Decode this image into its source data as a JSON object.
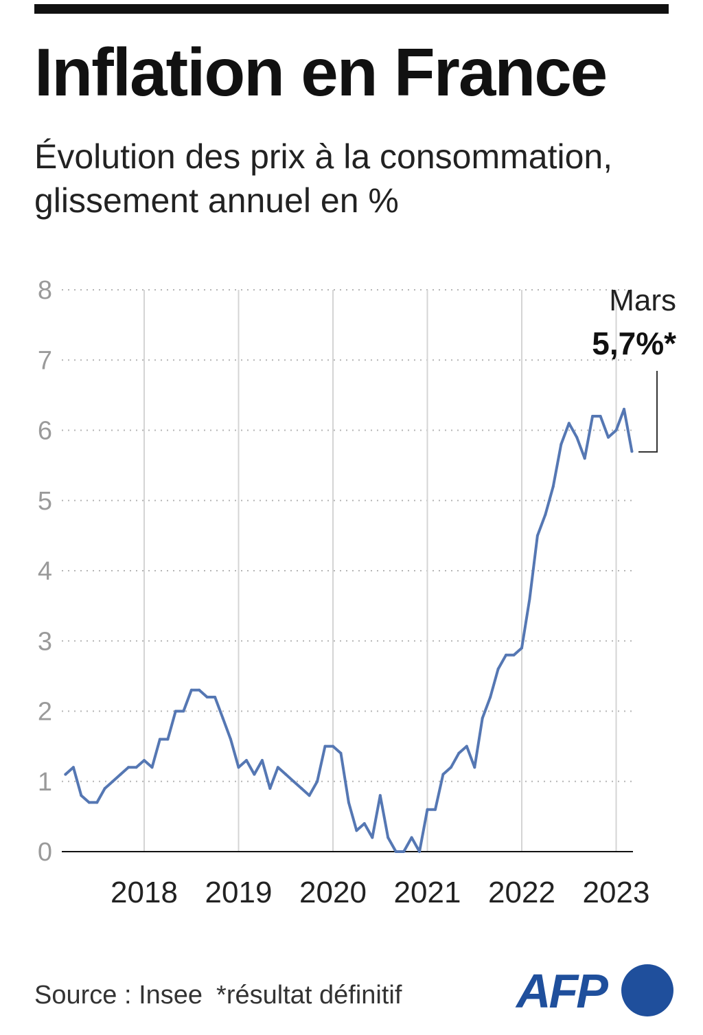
{
  "title": "Inflation en France",
  "subtitle": "Évolution des prix à la consommation, glissement annuel en %",
  "source": "Source : Insee",
  "footnote": "*résultat définitif",
  "logo_text": "AFP",
  "colors": {
    "line": "#5577b3",
    "brand": "#1f4f9c"
  },
  "annotation": {
    "month": "Mars",
    "value": "5,7%*"
  },
  "chart_data": {
    "type": "line",
    "title": "Inflation en France",
    "subtitle": "Évolution des prix à la consommation, glissement annuel en %",
    "xlabel": "",
    "ylabel": "",
    "ylim": [
      0,
      8
    ],
    "yticks": [
      "0",
      "1",
      "2",
      "3",
      "4",
      "5",
      "6",
      "7",
      "8"
    ],
    "xticks": [
      "2018",
      "2019",
      "2020",
      "2021",
      "2022",
      "2023"
    ],
    "grid": "horizontal dotted, vertical at years",
    "series": [
      {
        "x": [
          "2017-03",
          "2017-04",
          "2017-05",
          "2017-06",
          "2017-07",
          "2017-08",
          "2017-09",
          "2017-10",
          "2017-11",
          "2017-12",
          "2018-01",
          "2018-02",
          "2018-03",
          "2018-04",
          "2018-05",
          "2018-06",
          "2018-07",
          "2018-08",
          "2018-09",
          "2018-10",
          "2018-11",
          "2018-12",
          "2019-01",
          "2019-02",
          "2019-03",
          "2019-04",
          "2019-05",
          "2019-06",
          "2019-07",
          "2019-08",
          "2019-09",
          "2019-10",
          "2019-11",
          "2019-12",
          "2020-01",
          "2020-02",
          "2020-03",
          "2020-04",
          "2020-05",
          "2020-06",
          "2020-07",
          "2020-08",
          "2020-09",
          "2020-10",
          "2020-11",
          "2020-12",
          "2021-01",
          "2021-02",
          "2021-03",
          "2021-04",
          "2021-05",
          "2021-06",
          "2021-07",
          "2021-08",
          "2021-09",
          "2021-10",
          "2021-11",
          "2021-12",
          "2022-01",
          "2022-02",
          "2022-03",
          "2022-04",
          "2022-05",
          "2022-06",
          "2022-07",
          "2022-08",
          "2022-09",
          "2022-10",
          "2022-11",
          "2022-12",
          "2023-01",
          "2023-02",
          "2023-03"
        ],
        "values": [
          1.1,
          1.2,
          0.8,
          0.7,
          0.7,
          0.9,
          1.0,
          1.1,
          1.2,
          1.2,
          1.3,
          1.2,
          1.6,
          1.6,
          2.0,
          2.0,
          2.3,
          2.3,
          2.2,
          2.2,
          1.9,
          1.6,
          1.2,
          1.3,
          1.1,
          1.3,
          0.9,
          1.2,
          1.1,
          1.0,
          0.9,
          0.8,
          1.0,
          1.5,
          1.5,
          1.4,
          0.7,
          0.3,
          0.4,
          0.2,
          0.8,
          0.2,
          0.0,
          0.0,
          0.2,
          0.0,
          0.6,
          0.6,
          1.1,
          1.2,
          1.4,
          1.5,
          1.2,
          1.9,
          2.2,
          2.6,
          2.8,
          2.8,
          2.9,
          3.6,
          4.5,
          4.8,
          5.2,
          5.8,
          6.1,
          5.9,
          5.6,
          6.2,
          6.2,
          5.9,
          6.0,
          6.3,
          5.7
        ]
      }
    ]
  }
}
